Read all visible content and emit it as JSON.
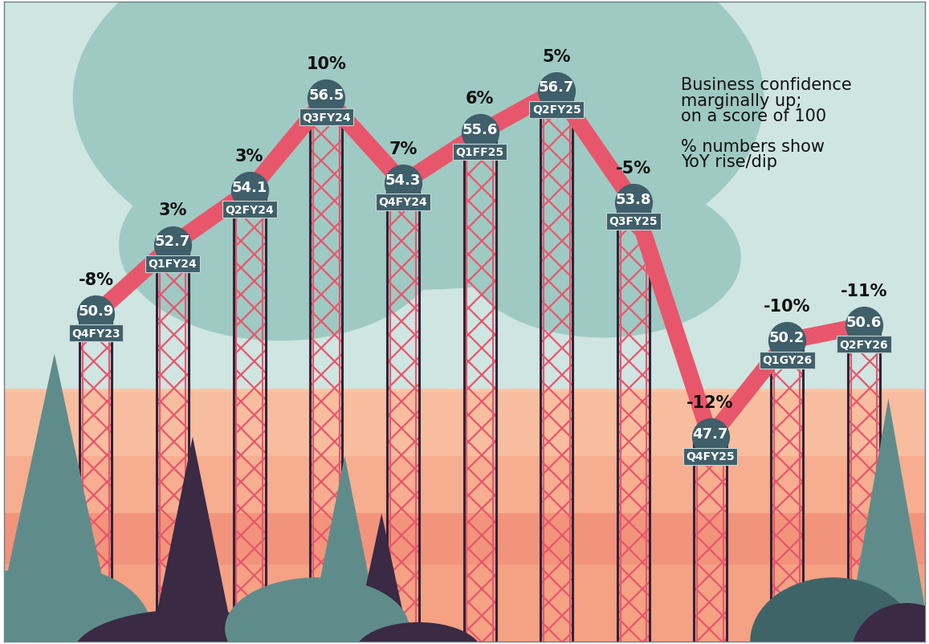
{
  "chart_data": {
    "type": "line",
    "categories": [
      "Q4FY23",
      "Q1FY24",
      "Q2FY24",
      "Q3FY24",
      "Q4FY24",
      "Q1FF25",
      "Q2FY25",
      "Q3FY25",
      "Q4FY25",
      "Q1GY26",
      "Q2FY26"
    ],
    "values": [
      50.9,
      52.7,
      54.1,
      56.5,
      54.3,
      55.6,
      56.7,
      53.8,
      47.7,
      50.2,
      50.6
    ],
    "data_labels": true,
    "yoy_change": [
      -8,
      3,
      3,
      10,
      7,
      6,
      5,
      -5,
      -12,
      -10,
      -11
    ],
    "yoy_labels": [
      "-8%",
      "3%",
      "3%",
      "10%",
      "7%",
      "6%",
      "5%",
      "-5%",
      "-12%",
      "-10%",
      "-11%"
    ],
    "annotations": [
      [
        "Business confidence",
        "marginally up;",
        "on a score of 100"
      ],
      [
        "% numbers show",
        "YoY rise/dip"
      ]
    ],
    "color": "#e8566b",
    "ylim": [
      42.4,
      59.0
    ],
    "yticks": [],
    "tick_labels": false
  }
}
